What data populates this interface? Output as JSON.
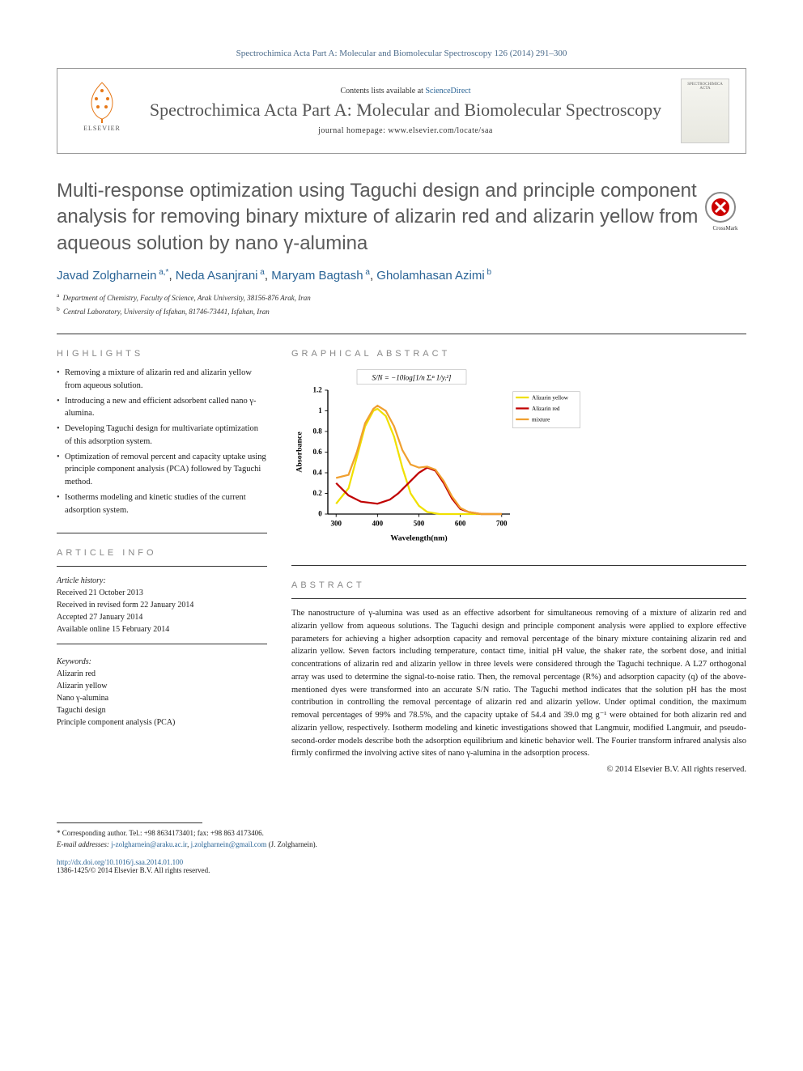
{
  "citation": "Spectrochimica Acta Part A: Molecular and Biomolecular Spectroscopy 126 (2014) 291–300",
  "header": {
    "contents_prefix": "Contents lists available at ",
    "contents_link": "ScienceDirect",
    "journal_name": "Spectrochimica Acta Part A: Molecular and Biomolecular Spectroscopy",
    "homepage_prefix": "journal homepage: ",
    "homepage": "www.elsevier.com/locate/saa",
    "publisher_logo_text": "ELSEVIER",
    "cover_text": "SPECTROCHIMICA ACTA"
  },
  "title": "Multi-response optimization using Taguchi design and principle component analysis for removing binary mixture of alizarin red and alizarin yellow from aqueous solution by nano γ-alumina",
  "crossmark_label": "CrossMark",
  "authors": [
    {
      "name": "Javad Zolgharnein",
      "aff": "a,",
      "corresponding": "*"
    },
    {
      "name": "Neda Asanjrani",
      "aff": "a"
    },
    {
      "name": "Maryam Bagtash",
      "aff": "a"
    },
    {
      "name": "Gholamhasan Azimi",
      "aff": "b"
    }
  ],
  "affiliations": [
    {
      "sup": "a",
      "text": "Department of Chemistry, Faculty of Science, Arak University, 38156-876 Arak, Iran"
    },
    {
      "sup": "b",
      "text": "Central Laboratory, University of Isfahan, 81746-73441, Isfahan, Iran"
    }
  ],
  "highlights_heading": "HIGHLIGHTS",
  "highlights": [
    "Removing a mixture of alizarin red and alizarin yellow from aqueous solution.",
    "Introducing a new and efficient adsorbent called nano γ-alumina.",
    "Developing Taguchi design for multivariate optimization of this adsorption system.",
    "Optimization of removal percent and capacity uptake using principle component analysis (PCA) followed by Taguchi method.",
    "Isotherms modeling and kinetic studies of the current adsorption system."
  ],
  "graphical_heading": "GRAPHICAL ABSTRACT",
  "article_info_heading": "ARTICLE INFO",
  "article_history_label": "Article history:",
  "article_history": [
    "Received 21 October 2013",
    "Received in revised form 22 January 2014",
    "Accepted 27 January 2014",
    "Available online 15 February 2014"
  ],
  "keywords_label": "Keywords:",
  "keywords": [
    "Alizarin red",
    "Alizarin yellow",
    "Nano γ-alumina",
    "Taguchi design",
    "Principle component analysis (PCA)"
  ],
  "abstract_heading": "ABSTRACT",
  "abstract": "The nanostructure of γ-alumina was used as an effective adsorbent for simultaneous removing of a mixture of alizarin red and alizarin yellow from aqueous solutions. The Taguchi design and principle component analysis were applied to explore effective parameters for achieving a higher adsorption capacity and removal percentage of the binary mixture containing alizarin red and alizarin yellow. Seven factors including temperature, contact time, initial pH value, the shaker rate, the sorbent dose, and initial concentrations of alizarin red and alizarin yellow in three levels were considered through the Taguchi technique. A L27 orthogonal array was used to determine the signal-to-noise ratio. Then, the removal percentage (R%) and adsorption capacity (q) of the above-mentioned dyes were transformed into an accurate S/N ratio. The Taguchi method indicates that the solution pH has the most contribution in controlling the removal percentage of alizarin red and alizarin yellow. Under optimal condition, the maximum removal percentages of 99% and 78.5%, and the capacity uptake of 54.4 and 39.0 mg g⁻¹ were obtained for both alizarin red and alizarin yellow, respectively. Isotherm modeling and kinetic investigations showed that Langmuir, modified Langmuir, and pseudo-second-order models describe both the adsorption equilibrium and kinetic behavior well. The Fourier transform infrared analysis also firmly confirmed the involving active sites of nano γ-alumina in the adsorption process.",
  "copyright": "© 2014 Elsevier B.V. All rights reserved.",
  "corresponding": {
    "marker": "*",
    "text": "Corresponding author. Tel.: +98 8634173401; fax: +98 863 4173406.",
    "email_label": "E-mail addresses:",
    "emails": [
      "j-zolgharnein@araku.ac.ir",
      "j.zolgharnein@gmail.com"
    ],
    "author_ref": "(J. Zolgharnein)."
  },
  "doi": "http://dx.doi.org/10.1016/j.saa.2014.01.100",
  "issn_line": "1386-1425/© 2014 Elsevier B.V. All rights reserved.",
  "chart": {
    "type": "line",
    "formula_text": "S/N = −10log[1/n Σᵢⁿ 1/yᵢ²]",
    "x_label": "Wavelength(nm)",
    "y_label": "Absorbance",
    "xlim": [
      280,
      720
    ],
    "ylim": [
      0,
      1.2
    ],
    "xticks": [
      300,
      400,
      500,
      600,
      700
    ],
    "yticks": [
      0,
      0.2,
      0.4,
      0.6,
      0.8,
      1.0,
      1.2
    ],
    "legend": [
      "Alizarin yellow",
      "Alizarin red",
      "mixture"
    ],
    "series_colors": [
      "#f0e000",
      "#c00000",
      "#f0a030"
    ],
    "line_width": 2.5,
    "background_color": "#ffffff",
    "axis_color": "#000000",
    "label_fontsize": 11,
    "tick_fontsize": 10,
    "series": {
      "alizarin_yellow": {
        "x": [
          300,
          330,
          350,
          370,
          390,
          400,
          420,
          440,
          460,
          480,
          500,
          520,
          550,
          600,
          700
        ],
        "y": [
          0.1,
          0.25,
          0.55,
          0.85,
          1.0,
          1.02,
          0.95,
          0.75,
          0.45,
          0.2,
          0.08,
          0.02,
          0.0,
          0.0,
          0.0
        ]
      },
      "alizarin_red": {
        "x": [
          300,
          330,
          360,
          400,
          430,
          450,
          480,
          500,
          520,
          540,
          560,
          580,
          600,
          620,
          650,
          700
        ],
        "y": [
          0.3,
          0.18,
          0.12,
          0.1,
          0.14,
          0.2,
          0.32,
          0.4,
          0.45,
          0.42,
          0.3,
          0.15,
          0.05,
          0.02,
          0.0,
          0.0
        ]
      },
      "mixture": {
        "x": [
          300,
          330,
          350,
          370,
          390,
          400,
          420,
          440,
          460,
          480,
          500,
          520,
          540,
          560,
          580,
          600,
          620,
          650,
          700
        ],
        "y": [
          0.35,
          0.38,
          0.6,
          0.88,
          1.02,
          1.05,
          1.0,
          0.85,
          0.62,
          0.48,
          0.45,
          0.46,
          0.43,
          0.32,
          0.17,
          0.06,
          0.02,
          0.0,
          0.0
        ]
      }
    }
  }
}
